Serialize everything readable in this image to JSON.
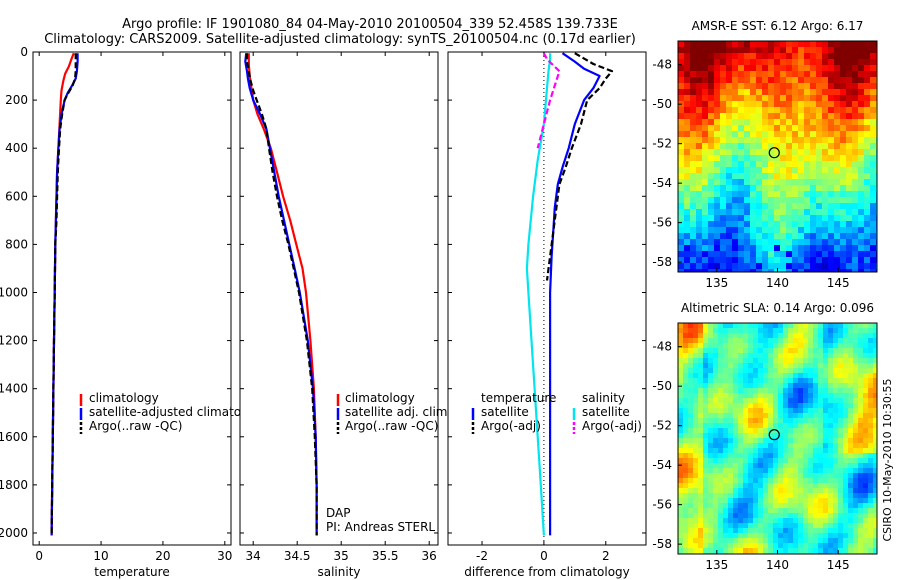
{
  "figure": {
    "title_line1": "Argo profile: IF 1901080_84 04-May-2010 20100504_339 52.458S 139.733E",
    "title_line2": "Climatology: CARS2009. Satellite-adjusted climatology: synTS_20100504.nc (0.17d earlier)",
    "footer": "CSIRO 10-May-2010 10:30:55",
    "colors": {
      "climatology": "#ff0000",
      "satellite": "#0000ff",
      "argo": "#000000",
      "salinity_satellite": "#00e5ee",
      "salinity_argo": "#ff00ff"
    }
  },
  "chart_data": [
    {
      "type": "line",
      "id": "temperature",
      "xlabel": "temperature",
      "ylabel": "",
      "xlim": [
        -1,
        31
      ],
      "ylim": [
        2050,
        0
      ],
      "xticks": [
        0,
        10,
        20,
        30
      ],
      "yticks": [
        0,
        200,
        400,
        600,
        800,
        1000,
        1200,
        1400,
        1600,
        1800,
        2000
      ],
      "legend": [
        "climatology",
        "satellite-adjusted climatology",
        "Argo(..raw -QC)"
      ],
      "series": [
        {
          "name": "climatology",
          "color": "#ff0000",
          "points": [
            [
              5.6,
              5
            ],
            [
              5.2,
              30
            ],
            [
              4.8,
              60
            ],
            [
              4.2,
              90
            ],
            [
              3.9,
              120
            ],
            [
              3.6,
              160
            ],
            [
              3.5,
              200
            ],
            [
              3.3,
              300
            ],
            [
              3.1,
              400
            ],
            [
              2.9,
              500
            ],
            [
              2.8,
              600
            ],
            [
              2.7,
              700
            ],
            [
              2.6,
              800
            ],
            [
              2.5,
              1000
            ],
            [
              2.4,
              1200
            ],
            [
              2.3,
              1400
            ],
            [
              2.2,
              1600
            ],
            [
              2.1,
              1800
            ],
            [
              2.0,
              2010
            ]
          ]
        },
        {
          "name": "satellite-adjusted climatology",
          "color": "#0000ff",
          "points": [
            [
              6.2,
              5
            ],
            [
              6.2,
              40
            ],
            [
              6.1,
              80
            ],
            [
              5.9,
              110
            ],
            [
              5.3,
              140
            ],
            [
              4.6,
              170
            ],
            [
              4.1,
              200
            ],
            [
              3.6,
              260
            ],
            [
              3.3,
              320
            ],
            [
              3.1,
              400
            ],
            [
              2.9,
              500
            ],
            [
              2.8,
              600
            ],
            [
              2.7,
              700
            ],
            [
              2.6,
              800
            ],
            [
              2.5,
              1000
            ],
            [
              2.4,
              1200
            ],
            [
              2.3,
              1400
            ],
            [
              2.2,
              1600
            ],
            [
              2.1,
              1800
            ],
            [
              2.0,
              2010
            ]
          ]
        },
        {
          "name": "Argo(..raw -QC)",
          "color": "#000000",
          "dashed": true,
          "points": [
            [
              5.9,
              5
            ],
            [
              5.9,
              40
            ],
            [
              5.9,
              80
            ],
            [
              5.8,
              110
            ],
            [
              5.4,
              140
            ],
            [
              4.7,
              170
            ],
            [
              4.1,
              200
            ],
            [
              3.7,
              260
            ],
            [
              3.4,
              320
            ],
            [
              3.2,
              400
            ],
            [
              3.0,
              500
            ],
            [
              2.9,
              600
            ],
            [
              2.8,
              700
            ],
            [
              2.6,
              800
            ],
            [
              2.5,
              1000
            ],
            [
              2.4,
              1200
            ],
            [
              2.3,
              1400
            ],
            [
              2.2,
              1600
            ],
            [
              2.1,
              1800
            ],
            [
              2.0,
              2010
            ]
          ]
        }
      ]
    },
    {
      "type": "line",
      "id": "salinity",
      "xlabel": "salinity",
      "ylabel": "",
      "xlim": [
        33.85,
        36.1
      ],
      "ylim": [
        2050,
        0
      ],
      "xticks": [
        34,
        34.5,
        35,
        35.5,
        36
      ],
      "yticks": [
        0,
        200,
        400,
        600,
        800,
        1000,
        1200,
        1400,
        1600,
        1800,
        2000
      ],
      "legend": [
        "climatology",
        "satellite adj. clim.",
        "Argo(..raw -QC)"
      ],
      "annotations": [
        "DAP",
        "PI: Andreas STERL"
      ],
      "series": [
        {
          "name": "climatology",
          "color": "#ff0000",
          "points": [
            [
              33.95,
              5
            ],
            [
              33.95,
              50
            ],
            [
              33.96,
              100
            ],
            [
              33.98,
              150
            ],
            [
              34.0,
              200
            ],
            [
              34.05,
              260
            ],
            [
              34.12,
              320
            ],
            [
              34.2,
              400
            ],
            [
              34.27,
              500
            ],
            [
              34.34,
              600
            ],
            [
              34.42,
              700
            ],
            [
              34.49,
              800
            ],
            [
              34.56,
              900
            ],
            [
              34.6,
              1000
            ],
            [
              34.65,
              1200
            ],
            [
              34.69,
              1400
            ],
            [
              34.71,
              1600
            ],
            [
              34.72,
              1800
            ],
            [
              34.72,
              2010
            ]
          ]
        },
        {
          "name": "satellite adj. clim.",
          "color": "#0000ff",
          "points": [
            [
              33.92,
              5
            ],
            [
              33.91,
              40
            ],
            [
              33.93,
              80
            ],
            [
              33.94,
              110
            ],
            [
              33.96,
              150
            ],
            [
              34.0,
              200
            ],
            [
              34.08,
              260
            ],
            [
              34.15,
              320
            ],
            [
              34.19,
              400
            ],
            [
              34.24,
              500
            ],
            [
              34.29,
              600
            ],
            [
              34.35,
              700
            ],
            [
              34.41,
              800
            ],
            [
              34.47,
              900
            ],
            [
              34.53,
              1000
            ],
            [
              34.62,
              1200
            ],
            [
              34.68,
              1400
            ],
            [
              34.71,
              1600
            ],
            [
              34.72,
              1800
            ],
            [
              34.72,
              2010
            ]
          ]
        },
        {
          "name": "Argo(..raw -QC)",
          "color": "#000000",
          "dashed": true,
          "points": [
            [
              33.93,
              5
            ],
            [
              33.93,
              40
            ],
            [
              33.95,
              80
            ],
            [
              33.97,
              120
            ],
            [
              34.0,
              160
            ],
            [
              34.04,
              200
            ],
            [
              34.1,
              260
            ],
            [
              34.15,
              320
            ],
            [
              34.18,
              400
            ],
            [
              34.22,
              500
            ],
            [
              34.27,
              600
            ],
            [
              34.33,
              700
            ],
            [
              34.4,
              800
            ],
            [
              34.46,
              900
            ],
            [
              34.52,
              1000
            ],
            [
              34.61,
              1200
            ],
            [
              34.67,
              1400
            ],
            [
              34.7,
              1600
            ],
            [
              34.72,
              1800
            ],
            [
              34.72,
              2010
            ]
          ]
        }
      ]
    },
    {
      "type": "line",
      "id": "difference",
      "xlabel": "difference from climatology",
      "ylabel": "",
      "xlim": [
        -3.1,
        3.3
      ],
      "ylim": [
        2050,
        0
      ],
      "xticks": [
        -2,
        0,
        2
      ],
      "yticks": [
        0,
        200,
        400,
        600,
        800,
        1000,
        1200,
        1400,
        1600,
        1800,
        2000
      ],
      "legend_groups": [
        {
          "title": "temperature",
          "items": [
            "satellite",
            "Argo(-adj)"
          ]
        },
        {
          "title": "salinity",
          "items": [
            "satellite",
            "Argo(-adj)"
          ]
        }
      ],
      "series": [
        {
          "name": "temperature satellite",
          "color": "#0000ff",
          "points": [
            [
              0.6,
              5
            ],
            [
              1.0,
              40
            ],
            [
              1.3,
              70
            ],
            [
              1.8,
              100
            ],
            [
              1.6,
              150
            ],
            [
              1.3,
              200
            ],
            [
              1.0,
              300
            ],
            [
              0.8,
              400
            ],
            [
              0.6,
              480
            ],
            [
              0.45,
              550
            ],
            [
              0.35,
              650
            ],
            [
              0.3,
              750
            ],
            [
              0.25,
              850
            ],
            [
              0.2,
              1000
            ],
            [
              0.2,
              1200
            ],
            [
              0.2,
              1400
            ],
            [
              0.2,
              1600
            ],
            [
              0.2,
              1800
            ],
            [
              0.2,
              2010
            ]
          ]
        },
        {
          "name": "temperature Argo(-adj)",
          "color": "#000000",
          "dashed": true,
          "points": [
            [
              1.0,
              5
            ],
            [
              1.6,
              50
            ],
            [
              2.2,
              80
            ],
            [
              2.0,
              110
            ],
            [
              1.8,
              150
            ],
            [
              1.4,
              200
            ],
            [
              1.2,
              300
            ],
            [
              0.9,
              400
            ],
            [
              0.7,
              480
            ],
            [
              0.5,
              550
            ],
            [
              0.4,
              650
            ],
            [
              0.3,
              750
            ],
            [
              0.2,
              850
            ],
            [
              0.1,
              950
            ]
          ]
        },
        {
          "name": "salinity satellite",
          "color": "#00e5ee",
          "points": [
            [
              0.2,
              5
            ],
            [
              0.2,
              30
            ],
            [
              0.15,
              80
            ],
            [
              0.1,
              150
            ],
            [
              0.0,
              300
            ],
            [
              -0.2,
              450
            ],
            [
              -0.35,
              600
            ],
            [
              -0.5,
              800
            ],
            [
              -0.55,
              900
            ],
            [
              -0.5,
              1000
            ],
            [
              -0.4,
              1200
            ],
            [
              -0.3,
              1400
            ],
            [
              -0.2,
              1600
            ],
            [
              -0.1,
              1800
            ],
            [
              0.0,
              2010
            ]
          ]
        },
        {
          "name": "salinity Argo(-adj)",
          "color": "#ff00ff",
          "dashed": true,
          "points": [
            [
              0.0,
              5
            ],
            [
              0.1,
              30
            ],
            [
              0.5,
              80
            ],
            [
              0.4,
              120
            ],
            [
              0.2,
              200
            ],
            [
              0.0,
              300
            ],
            [
              -0.2,
              400
            ]
          ]
        }
      ]
    },
    {
      "type": "heatmap",
      "id": "sst_map",
      "title": "AMSR-E SST: 6.12 Argo: 6.17",
      "xlim": [
        131.8,
        148.2
      ],
      "ylim": [
        -58.5,
        -46.8
      ],
      "xticks": [
        135,
        140,
        145
      ],
      "yticks": [
        -48,
        -50,
        -52,
        -54,
        -56,
        -58
      ],
      "marker": {
        "x": 139.733,
        "y": -52.458
      }
    },
    {
      "type": "heatmap",
      "id": "sla_map",
      "title": "Altimetric SLA: 0.14 Argo: 0.096",
      "xlim": [
        131.8,
        148.2
      ],
      "ylim": [
        -58.5,
        -46.8
      ],
      "xticks": [
        135,
        140,
        145
      ],
      "yticks": [
        -48,
        -50,
        -52,
        -54,
        -56,
        -58
      ],
      "marker": {
        "x": 139.733,
        "y": -52.458
      }
    }
  ]
}
